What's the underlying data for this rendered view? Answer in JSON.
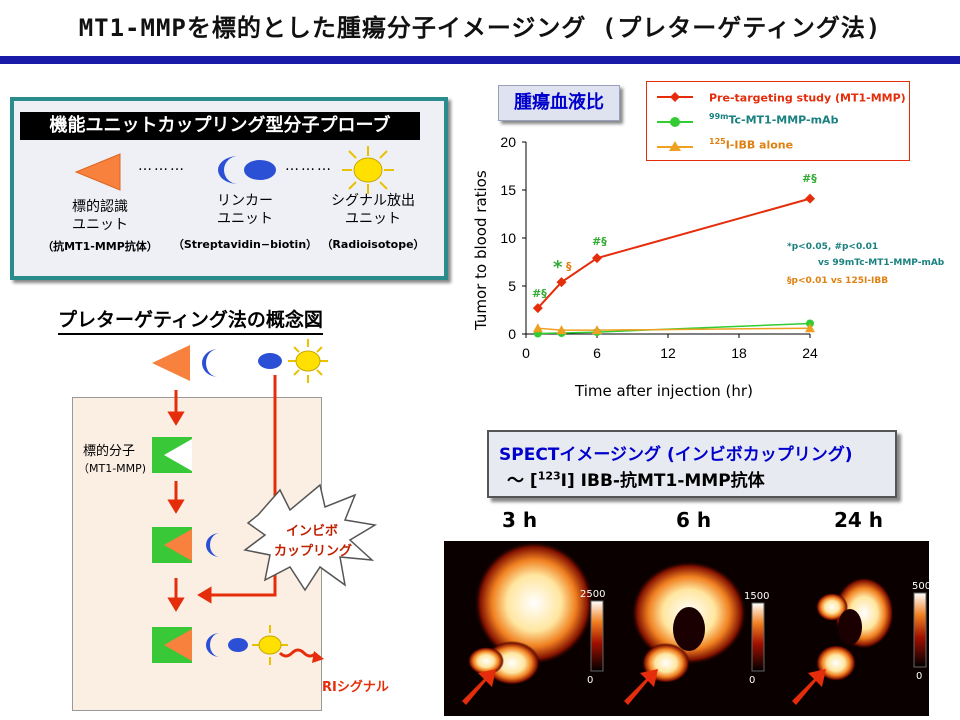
{
  "title": "MT1-MMPを標的とした腫瘍分子イメージング (プレターゲティング法)",
  "probe": {
    "heading": "機能ユニットカップリング型分子プローブ",
    "units": [
      {
        "name": "標的認識",
        "sub": "ユニット",
        "detail": "（抗MT1-MMP抗体）"
      },
      {
        "name": "リンカー",
        "sub": "ユニット",
        "detail": "（Streptavidin−biotin）"
      },
      {
        "name": "シグナル放出",
        "sub": "ユニット",
        "detail": "（Radioisotope）"
      }
    ],
    "dots": "………"
  },
  "concept": {
    "title": "プレターゲティング法の概念図",
    "target_label": "標的分子",
    "target_sub": "（MT1-MMP)",
    "burst_line1": "インビボ",
    "burst_line2": "カップリング",
    "ri_label": "RIシグナル"
  },
  "chart_title": "腫瘍血液比",
  "chart_data": {
    "type": "line",
    "x": [
      1,
      3,
      6,
      24
    ],
    "xlabel": "Time after injection (hr)",
    "ylabel": "Tumor to blood ratios",
    "xticks": [
      "0",
      "6",
      "12",
      "18",
      "24"
    ],
    "yticks": [
      "0",
      "5",
      "10",
      "15",
      "20"
    ],
    "xlim": [
      0,
      24
    ],
    "ylim": [
      0,
      20
    ],
    "series": [
      {
        "name": "Pre-targeting study (MT1-MMP)",
        "values": [
          2.7,
          5.4,
          7.9,
          14.1
        ],
        "color": "#e52d0b"
      },
      {
        "name": "99mTc-MT1-MMP-mAb",
        "values": [
          0.05,
          0.1,
          0.2,
          1.1
        ],
        "color": "#33cc33"
      },
      {
        "name": "125I-IBB alone",
        "values": [
          0.6,
          0.4,
          0.4,
          0.6
        ],
        "color": "#f0a020"
      }
    ],
    "legend": {
      "items": [
        {
          "text": "Pre-targeting study (MT1-MMP)",
          "sup": ""
        },
        {
          "text": "Tc-MT1-MMP-mAb",
          "sup": "99m"
        },
        {
          "text": "I-IBB alone",
          "sup": "125"
        }
      ],
      "position": "top-right"
    },
    "annotations": {
      "p1_marks": "#§",
      "p3_star": "*",
      "p3_mark": "§",
      "p6_marks": "#§",
      "p24_marks": "#§",
      "note1": "*p<0.05, #p<0.01",
      "note2": "vs 99mTc-MT1-MMP-mAb",
      "note3": "§p<0.01 vs 125I-IBB"
    }
  },
  "spect": {
    "line1": "SPECTイメージング (インビボカップリング)",
    "line2_prefix": "〜 [",
    "line2_sup": "123",
    "line2_suffix": "I] IBB-抗MT1-MMP抗体",
    "times": [
      "3 h",
      "6 h",
      "24 h"
    ],
    "scales": [
      {
        "max": "2500",
        "min": "0"
      },
      {
        "max": "1500",
        "min": "0"
      },
      {
        "max": "500",
        "min": "0"
      }
    ]
  },
  "colors": {
    "accent_blue": "#1a1aa8",
    "red": "#e52d0b",
    "green": "#33cc33",
    "orange": "#f0a020",
    "teal": "#2a8c8c"
  }
}
